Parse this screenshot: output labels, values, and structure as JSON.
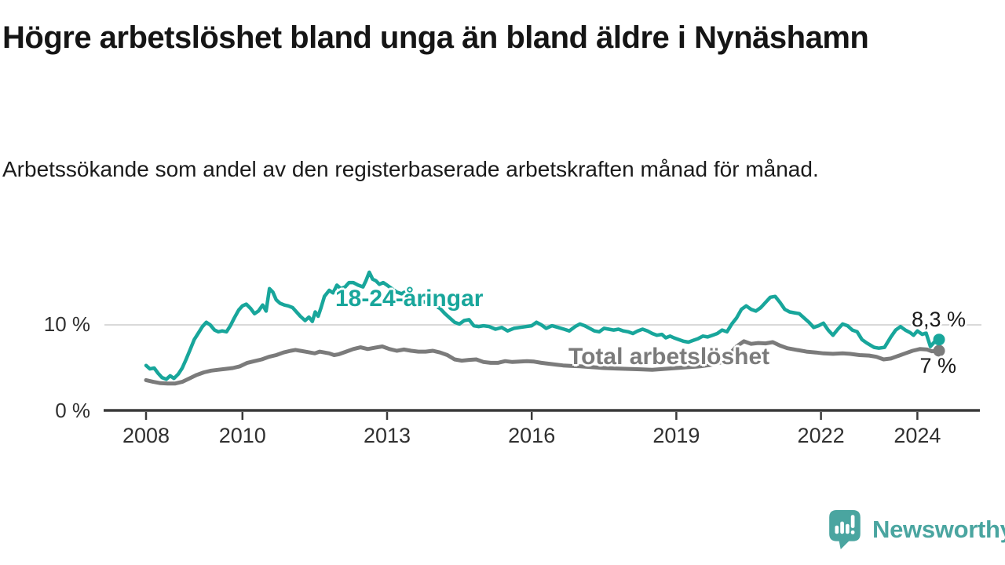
{
  "header": {
    "title": "Högre arbetslöshet bland unga än bland äldre i Nynäshamn",
    "subtitle": "Arbetssökande som andel av den registerbaserade arbetskraften månad för månad."
  },
  "chart_data": {
    "type": "line",
    "title": "Högre arbetslöshet bland unga än bland äldre i Nynäshamn",
    "subtitle": "Arbetssökande som andel av den registerbaserade arbetskraften månad för månad.",
    "unit": "%",
    "x_axis": {
      "tick_values": [
        2008,
        2010,
        2013,
        2016,
        2019,
        2022,
        2024
      ],
      "tick_labels": [
        "2008",
        "2010",
        "2013",
        "2016",
        "2019",
        "2022",
        "2024"
      ],
      "range_years": [
        2007.55,
        2024.6
      ],
      "grid": false
    },
    "y_axis": {
      "ticks": [
        {
          "value": 0,
          "label": "0 %"
        },
        {
          "value": 10,
          "label": "10 %"
        }
      ],
      "range": [
        0,
        17
      ],
      "grid": "only-10%-line"
    },
    "grid_color": "#d9d9d9",
    "axis_color": "#3a3a3a",
    "legend_position": "inline-labels-on-lines",
    "series": [
      {
        "name": "Total arbetslöshet",
        "color": "#7b7b7b",
        "end_value": 7.0,
        "end_value_label": "7 %",
        "points": [
          [
            2008.0,
            3.6
          ],
          [
            2008.15,
            3.4
          ],
          [
            2008.3,
            3.25
          ],
          [
            2008.45,
            3.2
          ],
          [
            2008.6,
            3.2
          ],
          [
            2008.75,
            3.4
          ],
          [
            2008.9,
            3.8
          ],
          [
            2009.05,
            4.2
          ],
          [
            2009.2,
            4.5
          ],
          [
            2009.35,
            4.7
          ],
          [
            2009.5,
            4.8
          ],
          [
            2009.65,
            4.9
          ],
          [
            2009.8,
            5.0
          ],
          [
            2009.95,
            5.2
          ],
          [
            2010.1,
            5.6
          ],
          [
            2010.25,
            5.8
          ],
          [
            2010.4,
            6.0
          ],
          [
            2010.55,
            6.3
          ],
          [
            2010.7,
            6.5
          ],
          [
            2010.85,
            6.8
          ],
          [
            2011.0,
            7.0
          ],
          [
            2011.1,
            7.1
          ],
          [
            2011.2,
            7.0
          ],
          [
            2011.3,
            6.9
          ],
          [
            2011.4,
            6.8
          ],
          [
            2011.5,
            6.7
          ],
          [
            2011.6,
            6.9
          ],
          [
            2011.7,
            6.8
          ],
          [
            2011.8,
            6.7
          ],
          [
            2011.9,
            6.5
          ],
          [
            2012.0,
            6.6
          ],
          [
            2012.15,
            6.9
          ],
          [
            2012.3,
            7.2
          ],
          [
            2012.45,
            7.4
          ],
          [
            2012.6,
            7.2
          ],
          [
            2012.75,
            7.35
          ],
          [
            2012.9,
            7.5
          ],
          [
            2013.05,
            7.2
          ],
          [
            2013.2,
            7.0
          ],
          [
            2013.35,
            7.15
          ],
          [
            2013.5,
            7.0
          ],
          [
            2013.65,
            6.9
          ],
          [
            2013.8,
            6.9
          ],
          [
            2013.95,
            7.0
          ],
          [
            2014.1,
            6.8
          ],
          [
            2014.25,
            6.5
          ],
          [
            2014.4,
            6.0
          ],
          [
            2014.55,
            5.85
          ],
          [
            2014.7,
            5.95
          ],
          [
            2014.85,
            6.0
          ],
          [
            2015.0,
            5.7
          ],
          [
            2015.15,
            5.6
          ],
          [
            2015.3,
            5.6
          ],
          [
            2015.45,
            5.8
          ],
          [
            2015.6,
            5.7
          ],
          [
            2015.75,
            5.75
          ],
          [
            2015.9,
            5.8
          ],
          [
            2016.05,
            5.75
          ],
          [
            2016.2,
            5.6
          ],
          [
            2016.35,
            5.5
          ],
          [
            2016.5,
            5.4
          ],
          [
            2016.65,
            5.3
          ],
          [
            2016.8,
            5.25
          ],
          [
            2017.0,
            5.2
          ],
          [
            2017.25,
            5.1
          ],
          [
            2017.5,
            5.0
          ],
          [
            2017.75,
            4.95
          ],
          [
            2018.0,
            4.9
          ],
          [
            2018.25,
            4.85
          ],
          [
            2018.5,
            4.8
          ],
          [
            2018.75,
            4.9
          ],
          [
            2019.0,
            5.0
          ],
          [
            2019.25,
            5.1
          ],
          [
            2019.5,
            5.2
          ],
          [
            2019.75,
            5.4
          ],
          [
            2019.95,
            5.7
          ],
          [
            2020.1,
            6.6
          ],
          [
            2020.25,
            7.5
          ],
          [
            2020.4,
            8.1
          ],
          [
            2020.55,
            7.8
          ],
          [
            2020.7,
            7.9
          ],
          [
            2020.85,
            7.85
          ],
          [
            2021.0,
            8.0
          ],
          [
            2021.15,
            7.6
          ],
          [
            2021.3,
            7.3
          ],
          [
            2021.5,
            7.1
          ],
          [
            2021.7,
            6.9
          ],
          [
            2021.9,
            6.8
          ],
          [
            2022.05,
            6.7
          ],
          [
            2022.25,
            6.65
          ],
          [
            2022.45,
            6.7
          ],
          [
            2022.6,
            6.65
          ],
          [
            2022.8,
            6.5
          ],
          [
            2023.0,
            6.45
          ],
          [
            2023.15,
            6.3
          ],
          [
            2023.3,
            6.0
          ],
          [
            2023.45,
            6.1
          ],
          [
            2023.6,
            6.4
          ],
          [
            2023.75,
            6.7
          ],
          [
            2023.9,
            7.0
          ],
          [
            2024.05,
            7.2
          ],
          [
            2024.2,
            7.15
          ],
          [
            2024.3,
            6.95
          ],
          [
            2024.45,
            7.0
          ]
        ]
      },
      {
        "name": "18-24-åringar",
        "color": "#18a69b",
        "end_value": 8.3,
        "end_value_label": "8,3 %",
        "points": [
          [
            2008.0,
            5.3
          ],
          [
            2008.08,
            4.9
          ],
          [
            2008.17,
            5.0
          ],
          [
            2008.25,
            4.4
          ],
          [
            2008.33,
            3.9
          ],
          [
            2008.42,
            3.7
          ],
          [
            2008.5,
            4.1
          ],
          [
            2008.58,
            3.8
          ],
          [
            2008.67,
            4.3
          ],
          [
            2008.75,
            5.0
          ],
          [
            2008.83,
            6.0
          ],
          [
            2008.92,
            7.2
          ],
          [
            2009.0,
            8.3
          ],
          [
            2009.08,
            9.0
          ],
          [
            2009.17,
            9.8
          ],
          [
            2009.25,
            10.3
          ],
          [
            2009.33,
            10.0
          ],
          [
            2009.42,
            9.4
          ],
          [
            2009.5,
            9.2
          ],
          [
            2009.58,
            9.3
          ],
          [
            2009.67,
            9.2
          ],
          [
            2009.75,
            9.9
          ],
          [
            2009.83,
            10.8
          ],
          [
            2009.92,
            11.7
          ],
          [
            2010.0,
            12.2
          ],
          [
            2010.08,
            12.4
          ],
          [
            2010.17,
            11.9
          ],
          [
            2010.25,
            11.3
          ],
          [
            2010.33,
            11.6
          ],
          [
            2010.42,
            12.3
          ],
          [
            2010.49,
            11.6
          ],
          [
            2010.56,
            14.2
          ],
          [
            2010.63,
            13.8
          ],
          [
            2010.7,
            12.9
          ],
          [
            2010.78,
            12.5
          ],
          [
            2010.87,
            12.3
          ],
          [
            2010.95,
            12.2
          ],
          [
            2011.04,
            12.0
          ],
          [
            2011.12,
            11.5
          ],
          [
            2011.2,
            11.0
          ],
          [
            2011.3,
            10.5
          ],
          [
            2011.38,
            10.9
          ],
          [
            2011.45,
            10.4
          ],
          [
            2011.51,
            11.5
          ],
          [
            2011.57,
            11.0
          ],
          [
            2011.63,
            12.0
          ],
          [
            2011.7,
            13.3
          ],
          [
            2011.8,
            14.0
          ],
          [
            2011.88,
            13.7
          ],
          [
            2011.96,
            14.6
          ],
          [
            2012.04,
            14.2
          ],
          [
            2012.13,
            14.4
          ],
          [
            2012.21,
            14.9
          ],
          [
            2012.3,
            14.9
          ],
          [
            2012.4,
            14.6
          ],
          [
            2012.5,
            14.4
          ],
          [
            2012.56,
            15.1
          ],
          [
            2012.63,
            16.1
          ],
          [
            2012.7,
            15.3
          ],
          [
            2012.77,
            15.1
          ],
          [
            2012.84,
            14.7
          ],
          [
            2012.92,
            14.9
          ],
          [
            2013.0,
            14.6
          ],
          [
            2013.1,
            14.2
          ],
          [
            2013.2,
            13.8
          ],
          [
            2013.3,
            13.6
          ],
          [
            2013.4,
            13.9
          ],
          [
            2013.5,
            13.4
          ],
          [
            2013.6,
            13.3
          ],
          [
            2013.7,
            12.8
          ],
          [
            2013.8,
            12.6
          ],
          [
            2013.9,
            12.5
          ],
          [
            2014.0,
            12.2
          ],
          [
            2014.1,
            11.9
          ],
          [
            2014.2,
            11.3
          ],
          [
            2014.3,
            10.8
          ],
          [
            2014.4,
            10.3
          ],
          [
            2014.5,
            10.1
          ],
          [
            2014.6,
            10.5
          ],
          [
            2014.7,
            10.6
          ],
          [
            2014.8,
            9.9
          ],
          [
            2014.9,
            9.8
          ],
          [
            2015.0,
            9.9
          ],
          [
            2015.12,
            9.8
          ],
          [
            2015.25,
            9.5
          ],
          [
            2015.38,
            9.7
          ],
          [
            2015.5,
            9.3
          ],
          [
            2015.63,
            9.6
          ],
          [
            2015.75,
            9.7
          ],
          [
            2015.88,
            9.8
          ],
          [
            2016.0,
            9.9
          ],
          [
            2016.1,
            10.3
          ],
          [
            2016.2,
            10.0
          ],
          [
            2016.3,
            9.6
          ],
          [
            2016.42,
            9.9
          ],
          [
            2016.55,
            9.7
          ],
          [
            2016.67,
            9.5
          ],
          [
            2016.78,
            9.3
          ],
          [
            2016.9,
            9.8
          ],
          [
            2017.0,
            10.1
          ],
          [
            2017.1,
            9.9
          ],
          [
            2017.2,
            9.6
          ],
          [
            2017.3,
            9.3
          ],
          [
            2017.4,
            9.2
          ],
          [
            2017.5,
            9.6
          ],
          [
            2017.6,
            9.5
          ],
          [
            2017.7,
            9.4
          ],
          [
            2017.8,
            9.5
          ],
          [
            2017.9,
            9.3
          ],
          [
            2018.0,
            9.2
          ],
          [
            2018.1,
            9.0
          ],
          [
            2018.2,
            9.3
          ],
          [
            2018.3,
            9.5
          ],
          [
            2018.4,
            9.3
          ],
          [
            2018.5,
            9.0
          ],
          [
            2018.6,
            8.8
          ],
          [
            2018.7,
            8.9
          ],
          [
            2018.78,
            8.5
          ],
          [
            2018.87,
            8.7
          ],
          [
            2018.95,
            8.5
          ],
          [
            2019.05,
            8.3
          ],
          [
            2019.15,
            8.1
          ],
          [
            2019.25,
            8.0
          ],
          [
            2019.35,
            8.2
          ],
          [
            2019.45,
            8.4
          ],
          [
            2019.55,
            8.7
          ],
          [
            2019.65,
            8.6
          ],
          [
            2019.75,
            8.8
          ],
          [
            2019.85,
            9.0
          ],
          [
            2019.95,
            9.4
          ],
          [
            2020.05,
            9.2
          ],
          [
            2020.15,
            10.1
          ],
          [
            2020.25,
            10.8
          ],
          [
            2020.35,
            11.8
          ],
          [
            2020.45,
            12.2
          ],
          [
            2020.55,
            11.8
          ],
          [
            2020.65,
            11.6
          ],
          [
            2020.75,
            12.0
          ],
          [
            2020.85,
            12.6
          ],
          [
            2020.95,
            13.2
          ],
          [
            2021.05,
            13.3
          ],
          [
            2021.15,
            12.6
          ],
          [
            2021.25,
            11.8
          ],
          [
            2021.35,
            11.5
          ],
          [
            2021.45,
            11.4
          ],
          [
            2021.55,
            11.3
          ],
          [
            2021.65,
            10.8
          ],
          [
            2021.75,
            10.3
          ],
          [
            2021.85,
            9.7
          ],
          [
            2021.95,
            9.9
          ],
          [
            2022.05,
            10.2
          ],
          [
            2022.15,
            9.4
          ],
          [
            2022.25,
            8.8
          ],
          [
            2022.35,
            9.5
          ],
          [
            2022.45,
            10.1
          ],
          [
            2022.55,
            9.9
          ],
          [
            2022.65,
            9.4
          ],
          [
            2022.75,
            9.2
          ],
          [
            2022.85,
            8.3
          ],
          [
            2022.95,
            7.9
          ],
          [
            2023.1,
            7.4
          ],
          [
            2023.2,
            7.3
          ],
          [
            2023.32,
            7.4
          ],
          [
            2023.45,
            8.6
          ],
          [
            2023.55,
            9.4
          ],
          [
            2023.65,
            9.8
          ],
          [
            2023.75,
            9.4
          ],
          [
            2023.85,
            9.1
          ],
          [
            2023.92,
            8.8
          ],
          [
            2024.0,
            9.3
          ],
          [
            2024.1,
            8.9
          ],
          [
            2024.18,
            9.05
          ],
          [
            2024.27,
            7.5
          ],
          [
            2024.35,
            8.0
          ],
          [
            2024.45,
            8.3
          ]
        ]
      }
    ]
  },
  "footer": {
    "brand": "Newsworthy",
    "brand_color": "#4aa5a0",
    "logo_icon": "bar-chart-speech-bubble"
  }
}
